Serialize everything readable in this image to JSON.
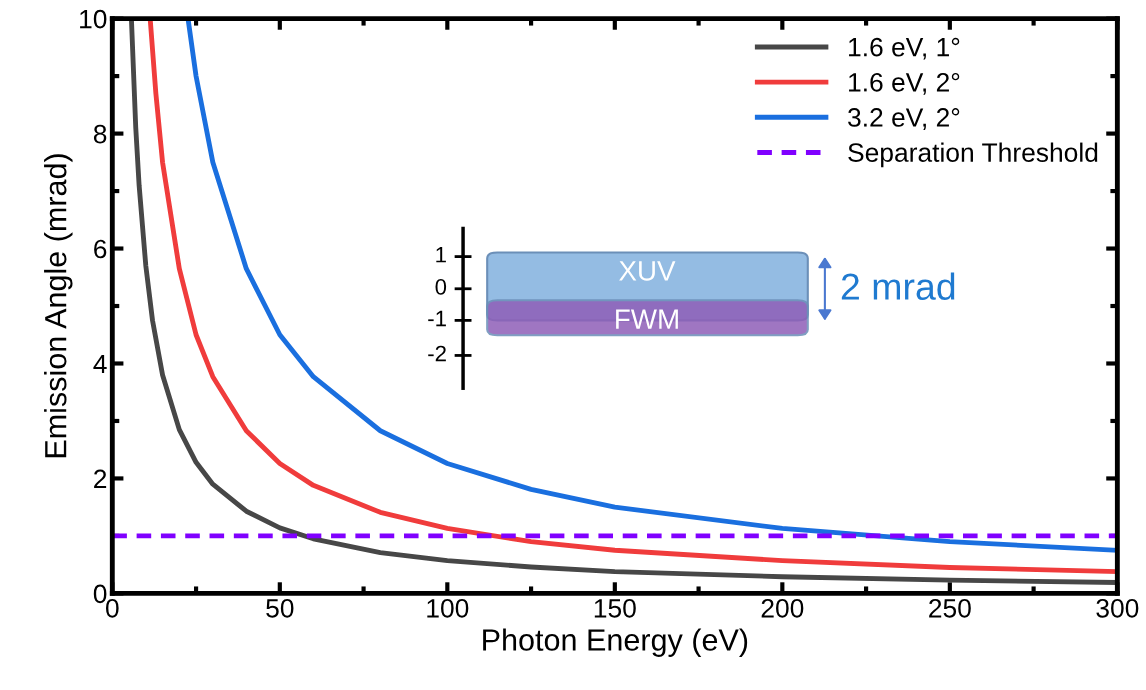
{
  "chart_data": {
    "type": "line",
    "xlabel": "Photon Energy (eV)",
    "ylabel": "Emission Angle (mrad)",
    "xlim": [
      0,
      300
    ],
    "xticks": [
      0,
      50,
      100,
      150,
      200,
      250,
      300
    ],
    "ylim": [
      0,
      10
    ],
    "yticks": [
      0,
      2,
      4,
      6,
      8,
      10
    ],
    "grid": false,
    "legend": "top right",
    "marker": "none",
    "line_style": "solid",
    "series": [
      {
        "name": "1.6 eV, 1°",
        "color": "#474747",
        "x": [
          5.7,
          7,
          8,
          10,
          12,
          15,
          20,
          25,
          30,
          40,
          50,
          60,
          80,
          100,
          125,
          150,
          200,
          250,
          300
        ],
        "values": [
          10,
          8.1,
          7.1,
          5.7,
          4.75,
          3.8,
          2.85,
          2.28,
          1.9,
          1.43,
          1.14,
          0.95,
          0.71,
          0.57,
          0.46,
          0.38,
          0.29,
          0.23,
          0.19
        ]
      },
      {
        "name": "1.6 eV, 2°",
        "color": "#f03c3c",
        "x": [
          11.3,
          13,
          15,
          20,
          25,
          30,
          40,
          50,
          60,
          80,
          100,
          125,
          150,
          200,
          250,
          300
        ],
        "values": [
          10,
          8.7,
          7.5,
          5.65,
          4.5,
          3.77,
          2.83,
          2.26,
          1.88,
          1.41,
          1.13,
          0.9,
          0.75,
          0.57,
          0.45,
          0.38
        ]
      },
      {
        "name": "3.2 eV, 2°",
        "color": "#1a6fdf",
        "x": [
          22.6,
          25,
          30,
          40,
          50,
          60,
          80,
          100,
          125,
          150,
          200,
          250,
          300
        ],
        "values": [
          10,
          9.0,
          7.5,
          5.65,
          4.5,
          3.77,
          2.83,
          2.26,
          1.81,
          1.5,
          1.13,
          0.9,
          0.75
        ]
      }
    ],
    "ref_lines": [
      {
        "axis": "y",
        "value": 1,
        "label": "Separation Threshold",
        "color": "#8000ff",
        "line_style": "dashed"
      }
    ],
    "annotations": [
      "1",
      "0",
      "-1",
      "-2",
      "XUV",
      "FWM",
      "2 mrad"
    ]
  }
}
